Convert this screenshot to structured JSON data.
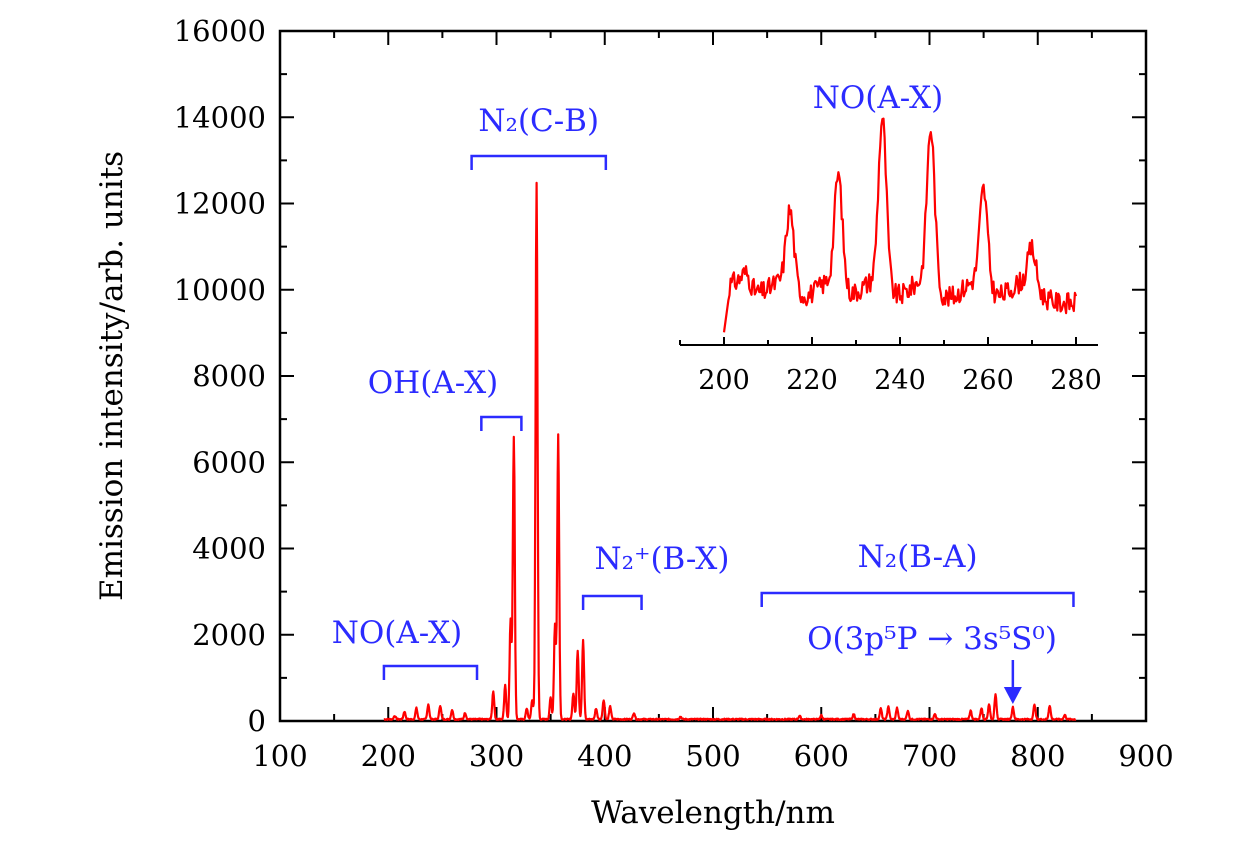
{
  "chart_data": {
    "type": "line",
    "xlabel": "Wavelength/nm",
    "ylabel": "Emission intensity/arb. units",
    "xlim": [
      100,
      900
    ],
    "ylim": [
      0,
      16000
    ],
    "x_ticks": [
      "100",
      "200",
      "300",
      "400",
      "500",
      "600",
      "700",
      "800",
      "900"
    ],
    "y_ticks": [
      "0",
      "2000",
      "4000",
      "6000",
      "8000",
      "10000",
      "12000",
      "14000",
      "16000"
    ],
    "series_color": "#ff0000",
    "annotation_color": "#2b2bff",
    "peaks": [
      {
        "x": 206,
        "y": 80
      },
      {
        "x": 215,
        "y": 180
      },
      {
        "x": 226,
        "y": 260
      },
      {
        "x": 237,
        "y": 350
      },
      {
        "x": 248,
        "y": 320
      },
      {
        "x": 259,
        "y": 220
      },
      {
        "x": 271,
        "y": 150
      },
      {
        "x": 297,
        "y": 650
      },
      {
        "x": 308,
        "y": 800
      },
      {
        "x": 313,
        "y": 2300
      },
      {
        "x": 316,
        "y": 6550
      },
      {
        "x": 328,
        "y": 250
      },
      {
        "x": 333,
        "y": 450
      },
      {
        "x": 337,
        "y": 12450
      },
      {
        "x": 350,
        "y": 500
      },
      {
        "x": 354,
        "y": 2200
      },
      {
        "x": 357,
        "y": 6600
      },
      {
        "x": 371,
        "y": 600
      },
      {
        "x": 375,
        "y": 1600
      },
      {
        "x": 380,
        "y": 1850
      },
      {
        "x": 392,
        "y": 250
      },
      {
        "x": 399,
        "y": 450
      },
      {
        "x": 405,
        "y": 300
      },
      {
        "x": 427,
        "y": 150
      },
      {
        "x": 470,
        "y": 60
      },
      {
        "x": 580,
        "y": 80
      },
      {
        "x": 600,
        "y": 90
      },
      {
        "x": 630,
        "y": 120
      },
      {
        "x": 655,
        "y": 250
      },
      {
        "x": 662,
        "y": 300
      },
      {
        "x": 670,
        "y": 260
      },
      {
        "x": 680,
        "y": 200
      },
      {
        "x": 705,
        "y": 120
      },
      {
        "x": 738,
        "y": 200
      },
      {
        "x": 748,
        "y": 260
      },
      {
        "x": 755,
        "y": 350
      },
      {
        "x": 761,
        "y": 580
      },
      {
        "x": 777,
        "y": 280
      },
      {
        "x": 797,
        "y": 350
      },
      {
        "x": 811,
        "y": 320
      },
      {
        "x": 825,
        "y": 100
      }
    ],
    "annotations": [
      {
        "label": "N₂(C-B)",
        "range": [
          277,
          401
        ]
      },
      {
        "label": "OH(A-X)",
        "range": [
          286,
          323
        ]
      },
      {
        "label": "NO(A-X)",
        "range": [
          196,
          282
        ]
      },
      {
        "label": "N₂⁺(B-X)",
        "range": [
          380,
          434
        ]
      },
      {
        "label": "N₂(B-A)",
        "range": [
          545,
          833
        ]
      },
      {
        "label": "O(3p⁵P → 3s⁵S⁰)",
        "arrow_x": 777
      }
    ],
    "inset": {
      "title": "NO(A-X)",
      "xlim": [
        190,
        285
      ],
      "x_ticks": [
        "200",
        "220",
        "240",
        "260",
        "280"
      ],
      "x_range": [
        200,
        280
      ],
      "baseline": 0.2,
      "peaks": [
        {
          "x": 205,
          "y": 0.26
        },
        {
          "x": 215,
          "y": 0.56
        },
        {
          "x": 226,
          "y": 0.73
        },
        {
          "x": 236,
          "y": 1.0
        },
        {
          "x": 247,
          "y": 0.95
        },
        {
          "x": 259,
          "y": 0.66
        },
        {
          "x": 270,
          "y": 0.38
        }
      ]
    }
  }
}
